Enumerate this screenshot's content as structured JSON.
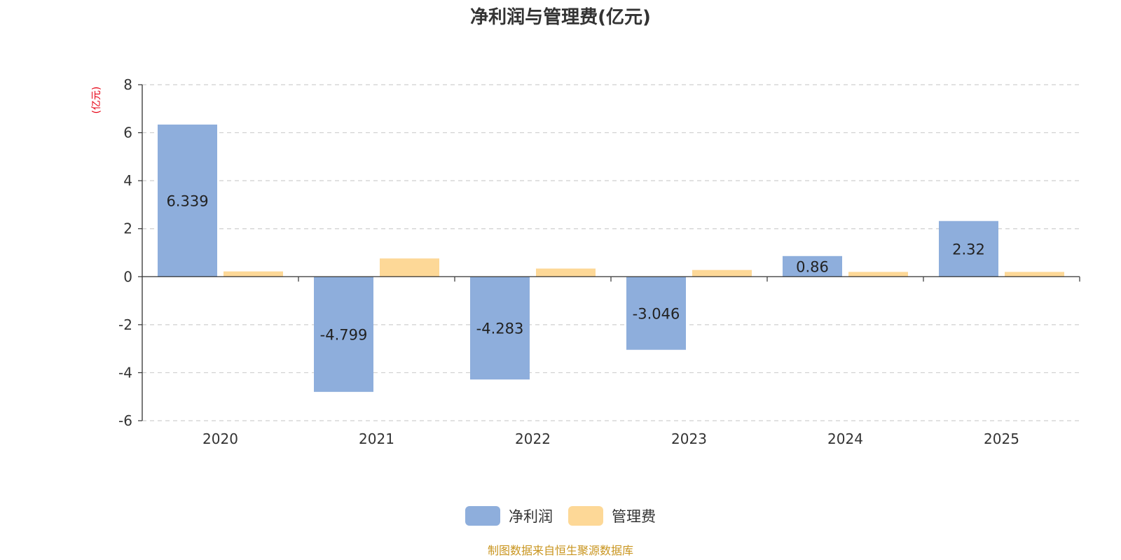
{
  "chart_data": {
    "type": "bar",
    "title": "净利润与管理费(亿元)",
    "ylabel": "(亿元)",
    "xlabel": "",
    "categories": [
      "2020",
      "2021",
      "2022",
      "2023",
      "2024",
      "2025"
    ],
    "series": [
      {
        "name": "净利润",
        "color": "#8eaedc",
        "values": [
          6.339,
          -4.799,
          -4.283,
          -3.046,
          0.86,
          2.32
        ],
        "labels": [
          "6.339",
          "-4.799",
          "-4.283",
          "-3.046",
          "0.86",
          "2.32"
        ]
      },
      {
        "name": "管理费",
        "color": "#fdd897",
        "values": [
          0.22,
          0.76,
          0.34,
          0.28,
          0.2,
          0.2
        ],
        "labels": null
      }
    ],
    "ylim": [
      -6,
      8
    ],
    "yticks": [
      8,
      6,
      4,
      2,
      0,
      -2,
      -4,
      -6
    ],
    "grid": true,
    "legend_position": "bottom-center"
  },
  "footer": {
    "source": "制图数据来自恒生聚源数据库"
  }
}
